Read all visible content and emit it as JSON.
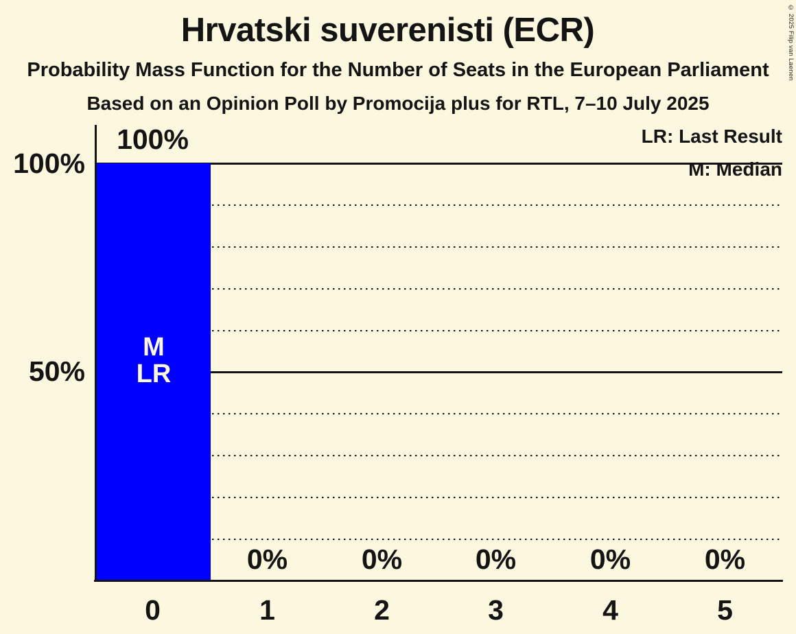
{
  "header": {
    "title": "Hrvatski suverenisti (ECR)",
    "subtitle": "Probability Mass Function for the Number of Seats in the European Parliament",
    "poll_line": "Based on an Opinion Poll by Promocija plus for RTL, 7–10 July 2025"
  },
  "legend": {
    "lr": "LR: Last Result",
    "m": "M: Median"
  },
  "copyright": "© 2025 Filip van Laenen",
  "chart_data": {
    "type": "bar",
    "title": "Hrvatski suverenisti (ECR)",
    "xlabel": "",
    "ylabel": "",
    "ylim": [
      0,
      100
    ],
    "categories": [
      "0",
      "1",
      "2",
      "3",
      "4",
      "5"
    ],
    "values": [
      100,
      0,
      0,
      0,
      0,
      0
    ],
    "value_labels": [
      "100%",
      "0%",
      "0%",
      "0%",
      "0%",
      "0%"
    ],
    "y_ticks": [
      {
        "value": 100,
        "label": "100%"
      },
      {
        "value": 50,
        "label": "50%"
      }
    ],
    "gridlines": {
      "solid_at": [
        100,
        50
      ],
      "dotted_at": [
        90,
        80,
        70,
        60,
        40,
        30,
        20,
        10
      ]
    },
    "median_seats": 0,
    "last_result_seats": 0,
    "bar_annotations": {
      "median": "M",
      "last_result": "LR"
    },
    "legend_position": "top-right",
    "colors": {
      "background": "#FCF7DF",
      "bar": "#0000FF",
      "bar_annotation_text": "#FCF7DF",
      "text": "#141414"
    }
  }
}
